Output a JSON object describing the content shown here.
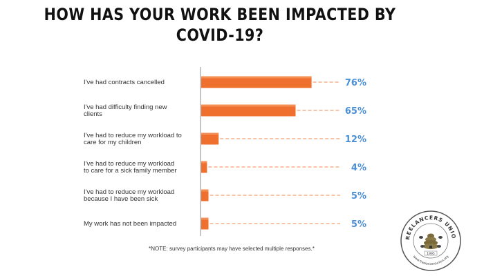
{
  "title_line1": "HOW HAS YOUR WORK BEEN IMPACTED BY",
  "title_line2": "COVID-19?",
  "note": "*NOTE: survey participants may have selected multiple responses.*",
  "logo": {
    "text_top": "FREELANCERS UNION",
    "year": "1995",
    "url": "www.freelancersunion.org",
    "icon": "beehive-logo-icon"
  },
  "colors": {
    "bar": "#ef6f2e",
    "bar_top": "#f7a36b",
    "leader": "#ef8a52",
    "value_label": "#4a8fd6",
    "axis": "#8c8c8c"
  },
  "chart_data": {
    "type": "bar",
    "orientation": "horizontal",
    "categories": [
      [
        "I've had contracts cancelled"
      ],
      [
        "I've had difficulty finding new",
        "clients"
      ],
      [
        "I've had to reduce my workload to",
        "care for my children"
      ],
      [
        "I've had to reduce my workload",
        "to care for a sick family member"
      ],
      [
        "I've had to reduce my workload",
        "because I have been sick"
      ],
      [
        "My work has not been impacted"
      ]
    ],
    "values": [
      76,
      65,
      12,
      4,
      5,
      5
    ],
    "value_labels": [
      "76%",
      "65%",
      "12%",
      "4%",
      "5%",
      "5%"
    ],
    "xlim": [
      0,
      100
    ],
    "title": "",
    "xlabel": "",
    "ylabel": "",
    "grid": false
  }
}
